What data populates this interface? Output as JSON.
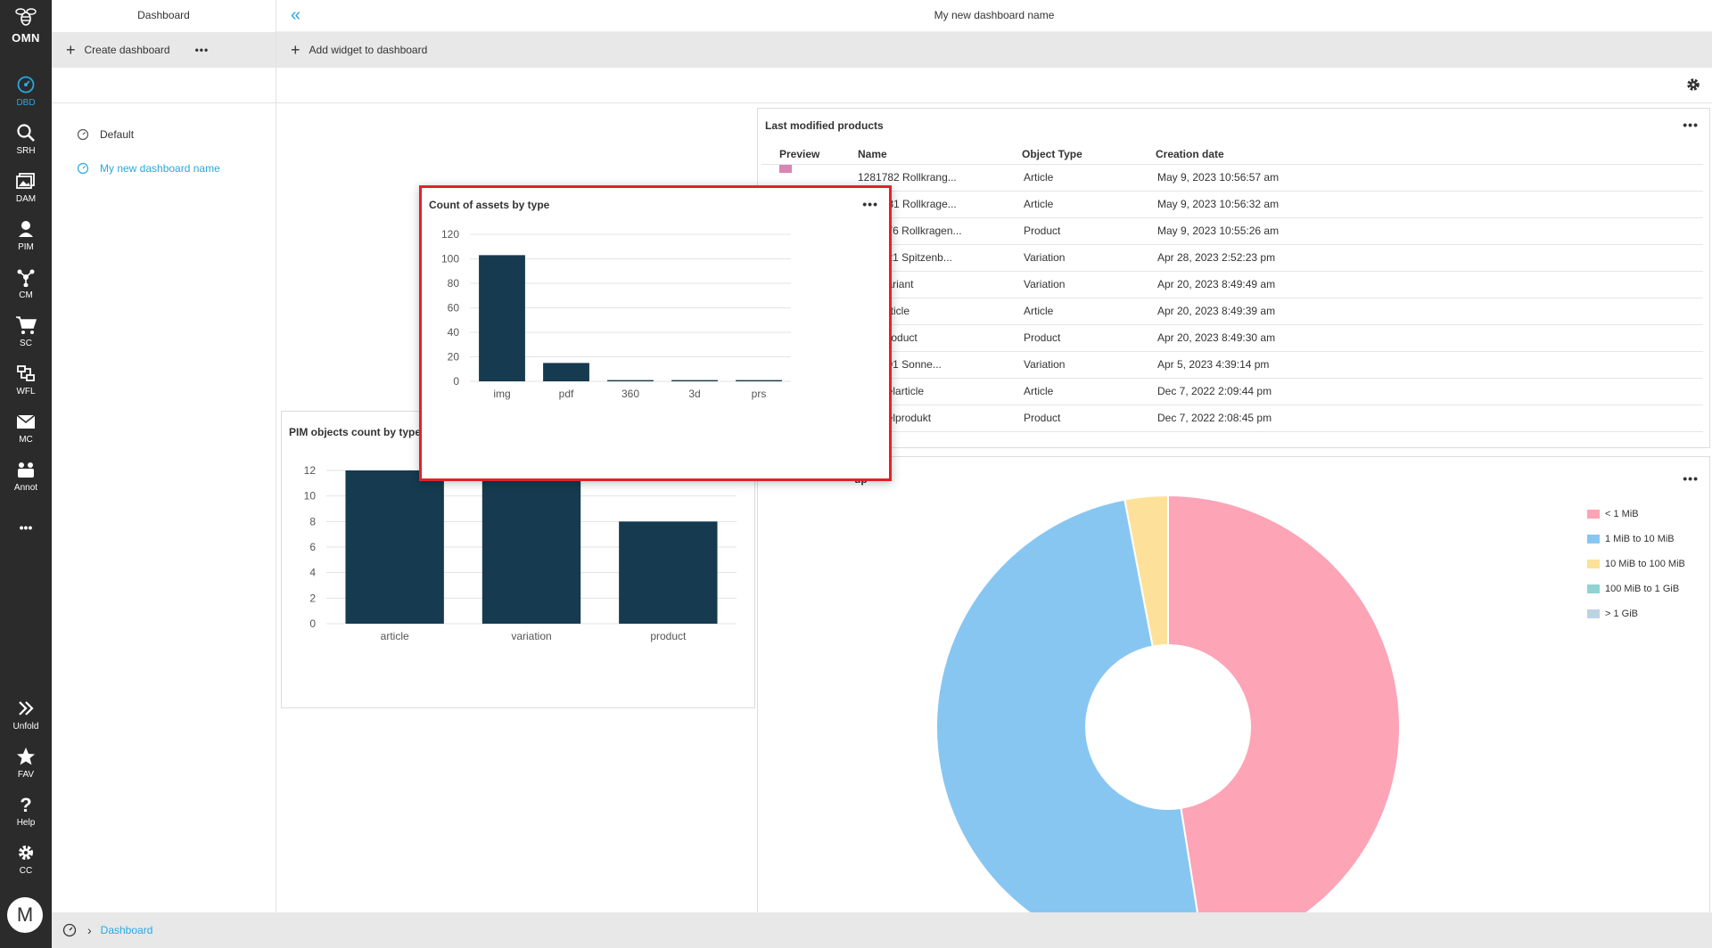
{
  "rail": {
    "logo_text": "OMN",
    "items": [
      {
        "label": "DBD",
        "icon": "dashboard-icon"
      },
      {
        "label": "SRH",
        "icon": "search-icon"
      },
      {
        "label": "DAM",
        "icon": "images-icon"
      },
      {
        "label": "PIM",
        "icon": "pim-icon"
      },
      {
        "label": "CM",
        "icon": "network-icon"
      },
      {
        "label": "SC",
        "icon": "cart-icon"
      },
      {
        "label": "WFL",
        "icon": "workflow-icon"
      },
      {
        "label": "MC",
        "icon": "mail-icon"
      },
      {
        "label": "Annot",
        "icon": "annotation-icon"
      }
    ],
    "more_label": "•••",
    "bottom": [
      {
        "label": "Unfold",
        "icon": "double-chevron-right-icon"
      },
      {
        "label": "FAV",
        "icon": "star-icon"
      },
      {
        "label": "Help",
        "icon": "question-icon"
      },
      {
        "label": "CC",
        "icon": "gear-icon"
      }
    ],
    "avatar_letter": "M"
  },
  "left_panel": {
    "title": "Dashboard",
    "create_label": "Create dashboard",
    "more": "•••",
    "dashboards": [
      {
        "label": "Default",
        "selected": false
      },
      {
        "label": "My new dashboard name",
        "selected": true
      }
    ]
  },
  "main": {
    "dashboard_name": "My new dashboard name",
    "add_widget_label": "Add widget to dashboard"
  },
  "products_widget": {
    "title": "Last modified products",
    "more": "•••",
    "columns": [
      "Preview",
      "Name",
      "Object Type",
      "Creation date"
    ],
    "rows": [
      {
        "name": "1281782 Rollkrang...",
        "type": "Article",
        "date": "May 9, 2023 10:56:57 am"
      },
      {
        "name": "1281781 Rollkrage...",
        "type": "Article",
        "date": "May 9, 2023 10:56:32 am"
      },
      {
        "name": "1281176 Rollkragen...",
        "type": "Product",
        "date": "May 9, 2023 10:55:26 am"
      },
      {
        "name": "1132121 Spitzenb...",
        "type": "Variation",
        "date": "Apr 28, 2023 2:52:23 pm"
      },
      {
        "name": "Test Variant",
        "type": "Variation",
        "date": "Apr 20, 2023 8:49:49 am"
      },
      {
        "name": "Test Article",
        "type": "Article",
        "date": "Apr 20, 2023 8:49:39 am"
      },
      {
        "name": "Test Product",
        "type": "Product",
        "date": "Apr 20, 2023 8:49:30 am"
      },
      {
        "name": "1135091 Sonne...",
        "type": "Variation",
        "date": "Apr 5, 2023 4:39:14 pm"
      },
      {
        "name": "Beispielarticle",
        "type": "Article",
        "date": "Dec 7, 2022 2:09:44 pm"
      },
      {
        "name": "Beispielprodukt",
        "type": "Product",
        "date": "Dec 7, 2022 2:08:45 pm"
      }
    ]
  },
  "pie_widget": {
    "title_visible": "up",
    "more": "•••",
    "colors": [
      "#fda4b6",
      "#88c6f2",
      "#fde19a",
      "#8fd3d3",
      "#bcd3e2"
    ]
  },
  "footer": {
    "crumb": "Dashboard"
  },
  "chart_data": [
    {
      "type": "bar",
      "title": "Count of assets by type",
      "categories": [
        "img",
        "pdf",
        "360",
        "3d",
        "prs"
      ],
      "values": [
        103,
        15,
        1,
        1,
        1
      ],
      "ylim": [
        0,
        120
      ],
      "yticks": [
        0,
        20,
        40,
        60,
        80,
        100,
        120
      ],
      "color": "#163a50",
      "grid": true
    },
    {
      "type": "bar",
      "title": "PIM objects count by type",
      "categories": [
        "article",
        "variation",
        "product"
      ],
      "values": [
        12,
        12,
        8
      ],
      "ylim": [
        0,
        12
      ],
      "yticks": [
        0,
        2,
        4,
        6,
        8,
        10,
        12
      ],
      "color": "#163a50",
      "grid": true
    },
    {
      "type": "pie",
      "categories": [
        "< 1 MiB",
        "1 MiB to 10 MiB",
        "10 MiB to 100 MiB",
        "100 MiB to 1 GiB",
        "> 1 GiB"
      ],
      "values": [
        47.5,
        49.5,
        3.0,
        0,
        0
      ],
      "donut": true,
      "legend": "right"
    }
  ]
}
